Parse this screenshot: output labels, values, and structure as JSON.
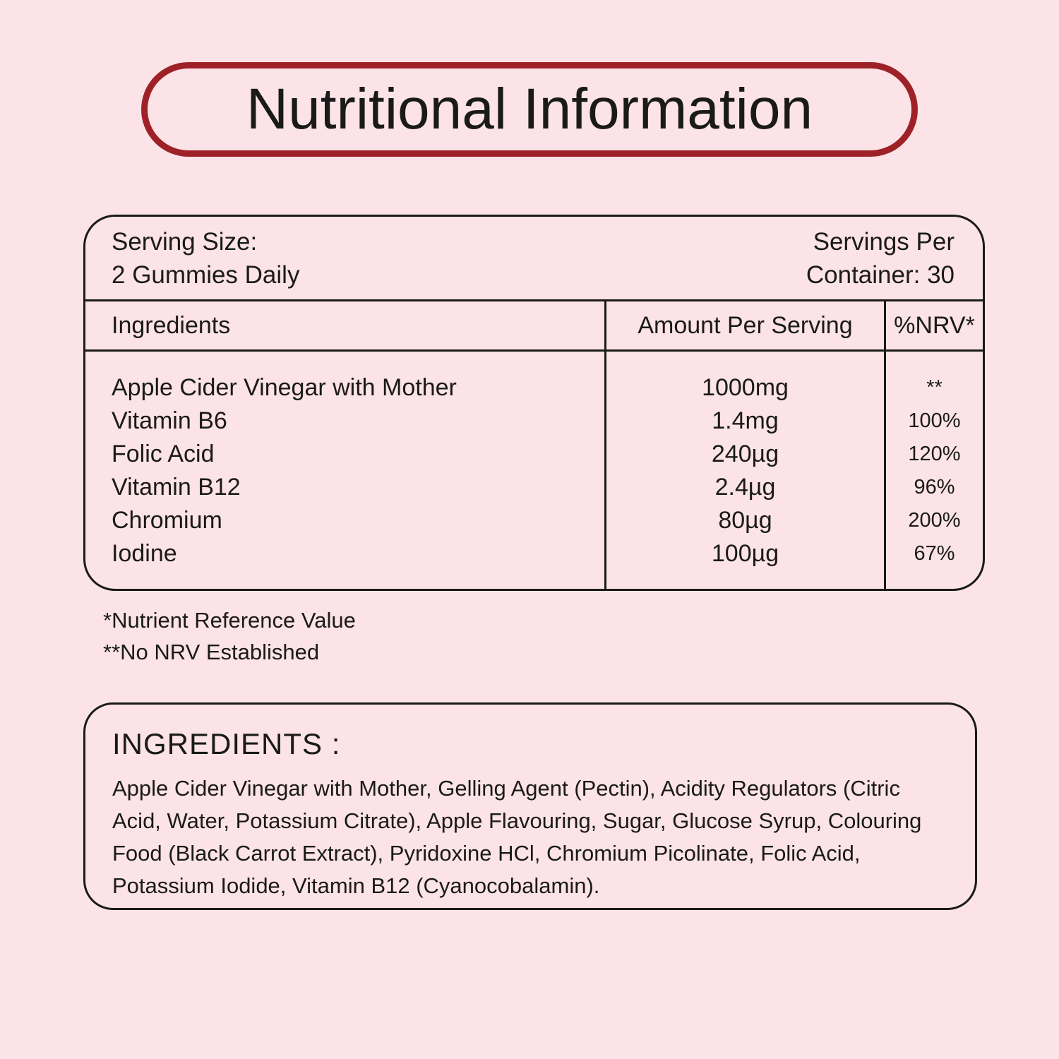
{
  "page": {
    "title": "Nutritional Information"
  },
  "colors": {
    "background": "#FBE3E7",
    "accent_red": "#9F2128",
    "border": "#1A1A1A",
    "text": "#1A1A1A"
  },
  "nutrition_panel": {
    "serving_size": {
      "label": "Serving Size:",
      "value": "2 Gummies Daily"
    },
    "servings_per_container": {
      "line1": "Servings Per",
      "line2": "Container: 30"
    },
    "headers": {
      "ingredient": "Ingredients",
      "amount": "Amount Per Serving",
      "nrv": "%NRV*"
    },
    "rows": [
      {
        "name": "Apple Cider Vinegar with Mother",
        "amount": "1000mg",
        "nrv": "**"
      },
      {
        "name": "Vitamin B6",
        "amount": "1.4mg",
        "nrv": "100%"
      },
      {
        "name": "Folic Acid",
        "amount": "240µg",
        "nrv": "120%"
      },
      {
        "name": "Vitamin B12",
        "amount": "2.4µg",
        "nrv": "96%"
      },
      {
        "name": "Chromium",
        "amount": "80µg",
        "nrv": "200%"
      },
      {
        "name": "Iodine",
        "amount": "100µg",
        "nrv": "67%"
      }
    ]
  },
  "footnotes": {
    "nrv": "*Nutrient Reference Value",
    "no_nrv": "**No NRV Established"
  },
  "ingredients_box": {
    "heading": "INGREDIENTS :",
    "text": "Apple Cider Vinegar with Mother, Gelling Agent (Pectin), Acidity Regulators (Citric Acid, Water, Potassium Citrate), Apple Flavouring, Sugar, Glucose Syrup, Colouring Food (Black Carrot Extract), Pyridoxine HCl, Chromium Picolinate, Folic Acid, Potassium Iodide, Vitamin B12 (Cyanocobalamin)."
  }
}
